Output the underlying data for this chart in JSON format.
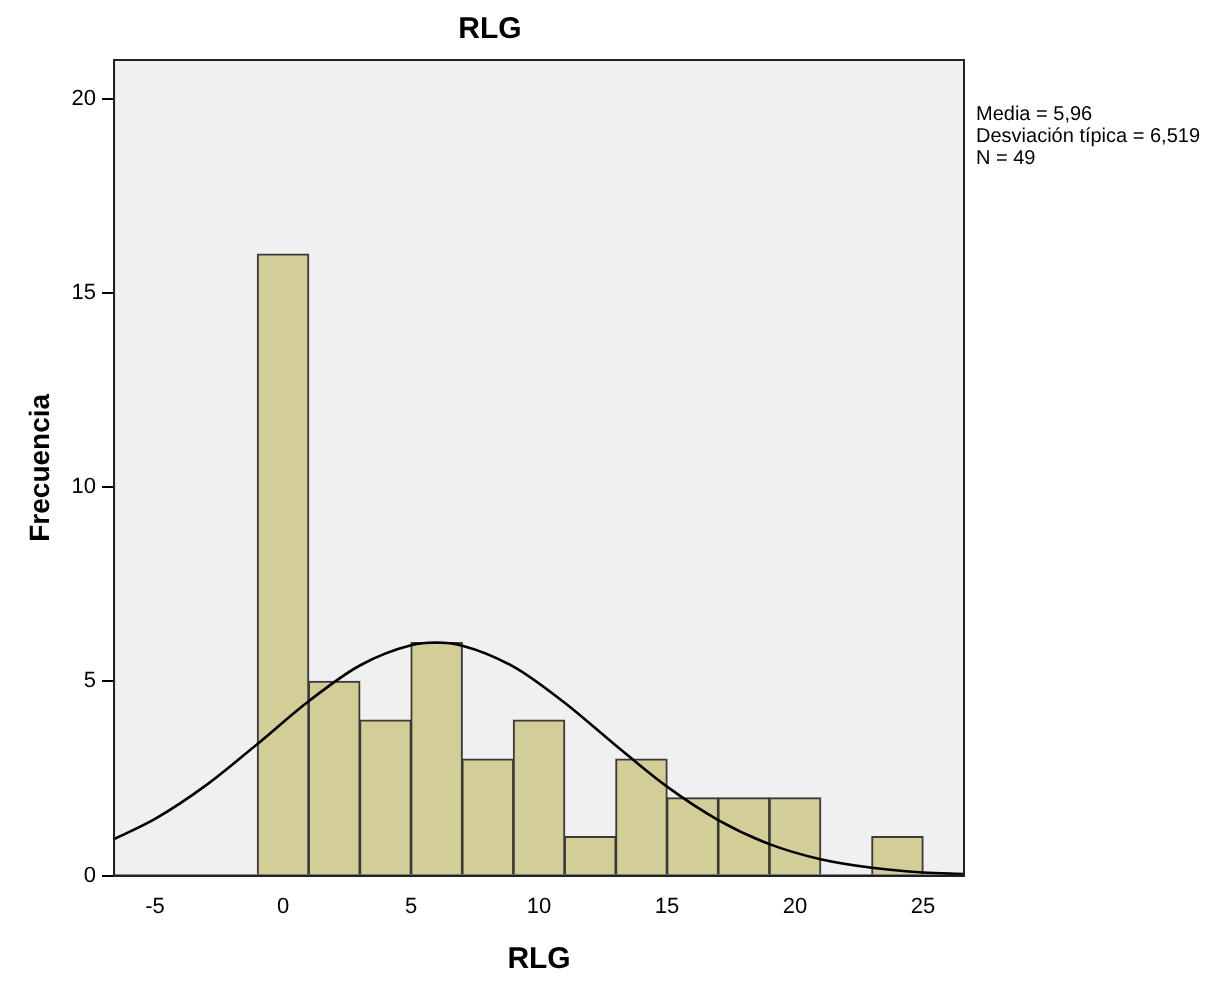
{
  "chart_data": {
    "type": "histogram",
    "title": "RLG",
    "xlabel": "RLG",
    "ylabel": "Frecuencia",
    "bins": [
      -1,
      1,
      3,
      5,
      7,
      9,
      11,
      13,
      15,
      17,
      19,
      21,
      23,
      25
    ],
    "values": [
      16,
      5,
      4,
      6,
      3,
      4,
      1,
      3,
      2,
      2,
      2,
      0,
      1
    ],
    "color": "#d3ce97",
    "series": [
      {
        "type": "line",
        "color": "#000000",
        "x": [
          -6.6,
          -5,
          -3,
          -1,
          1,
          3,
          5,
          5.96,
          7,
          9,
          11,
          13,
          15,
          17,
          19,
          21,
          23,
          25,
          26.6
        ],
        "values": [
          0.94,
          1.46,
          2.33,
          3.39,
          4.49,
          5.41,
          5.93,
          6.0,
          5.92,
          5.38,
          4.45,
          3.35,
          2.29,
          1.43,
          0.81,
          0.42,
          0.2,
          0.08,
          0.04
        ]
      }
    ],
    "xlim": [
      -6.6,
      26.6
    ],
    "xticks": [
      -5,
      0,
      5,
      10,
      15,
      20,
      25
    ],
    "ylim": [
      0,
      21
    ],
    "yticks": [
      0,
      5,
      10,
      15,
      20
    ],
    "grid": false,
    "legend": false,
    "marker": "none",
    "annotations": [
      "Media = 5,96\nDesviación típica = 6,519\nN = 49"
    ]
  }
}
